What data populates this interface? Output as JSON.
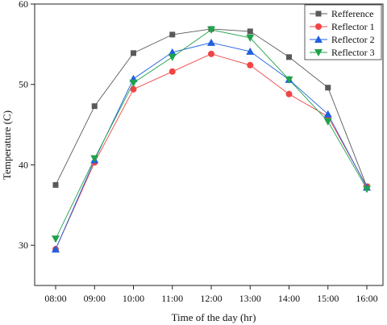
{
  "chart_data": {
    "type": "line",
    "title": "",
    "xlabel": "Time of the day (hr)",
    "ylabel": "Temperature (C)",
    "categories": [
      "08:00",
      "09:00",
      "10:00",
      "11:00",
      "12:00",
      "13:00",
      "14:00",
      "15:00",
      "16:00"
    ],
    "ylim": [
      25,
      60
    ],
    "yticks": [
      30,
      40,
      50,
      60
    ],
    "grid": false,
    "legend_position": "top-right",
    "series": [
      {
        "name": "Refference",
        "color": "#595959",
        "marker": "square",
        "values": [
          37.5,
          47.3,
          53.9,
          56.2,
          56.9,
          56.6,
          53.4,
          49.6,
          37.3
        ]
      },
      {
        "name": "Reflector 1",
        "color": "#f04545",
        "marker": "circle",
        "values": [
          29.5,
          40.3,
          49.4,
          51.6,
          53.8,
          52.4,
          48.8,
          46.0,
          37.3
        ]
      },
      {
        "name": "Reflector 2",
        "color": "#1f5fe0",
        "marker": "triangle-up",
        "values": [
          29.5,
          40.6,
          50.7,
          54.0,
          55.2,
          54.1,
          50.6,
          46.3,
          37.2
        ]
      },
      {
        "name": "Reflector 3",
        "color": "#1fa34a",
        "marker": "triangle-down",
        "values": [
          30.8,
          40.8,
          50.2,
          53.4,
          56.8,
          55.8,
          50.6,
          45.4,
          37.0
        ]
      }
    ]
  }
}
